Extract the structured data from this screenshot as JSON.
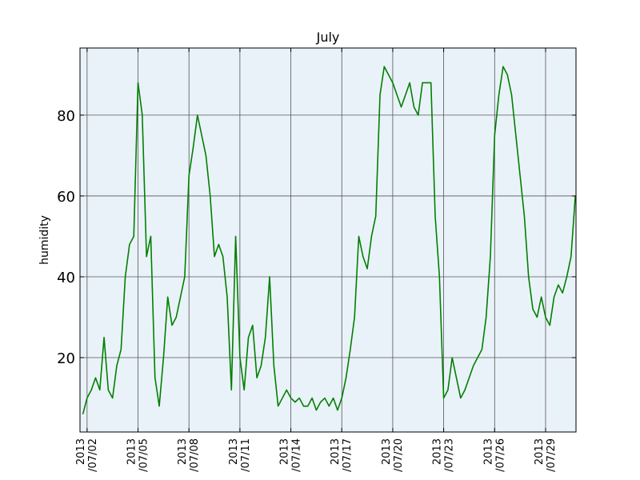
{
  "chart_data": {
    "type": "line",
    "title": "July",
    "y_label": "humidity",
    "color": "#008000",
    "background": "#eaf2f9",
    "grid": true,
    "x": [
      "2013-07-01 18:00",
      "2013-07-02 00:00",
      "2013-07-02 06:00",
      "2013-07-02 12:00",
      "2013-07-02 18:00",
      "2013-07-03 00:00",
      "2013-07-03 06:00",
      "2013-07-03 12:00",
      "2013-07-03 18:00",
      "2013-07-04 00:00",
      "2013-07-04 06:00",
      "2013-07-04 12:00",
      "2013-07-04 18:00",
      "2013-07-05 00:00",
      "2013-07-05 06:00",
      "2013-07-05 12:00",
      "2013-07-05 18:00",
      "2013-07-06 00:00",
      "2013-07-06 06:00",
      "2013-07-06 12:00",
      "2013-07-06 18:00",
      "2013-07-07 00:00",
      "2013-07-07 06:00",
      "2013-07-07 12:00",
      "2013-07-07 18:00",
      "2013-07-08 00:00",
      "2013-07-08 06:00",
      "2013-07-08 12:00",
      "2013-07-08 18:00",
      "2013-07-09 00:00",
      "2013-07-09 06:00",
      "2013-07-09 12:00",
      "2013-07-09 18:00",
      "2013-07-10 00:00",
      "2013-07-10 06:00",
      "2013-07-10 12:00",
      "2013-07-10 18:00",
      "2013-07-11 00:00",
      "2013-07-11 06:00",
      "2013-07-11 12:00",
      "2013-07-11 18:00",
      "2013-07-12 00:00",
      "2013-07-12 06:00",
      "2013-07-12 12:00",
      "2013-07-12 18:00",
      "2013-07-13 00:00",
      "2013-07-13 06:00",
      "2013-07-13 12:00",
      "2013-07-13 18:00",
      "2013-07-14 00:00",
      "2013-07-14 06:00",
      "2013-07-14 12:00",
      "2013-07-14 18:00",
      "2013-07-15 00:00",
      "2013-07-15 06:00",
      "2013-07-15 12:00",
      "2013-07-15 18:00",
      "2013-07-16 00:00",
      "2013-07-16 06:00",
      "2013-07-16 12:00",
      "2013-07-16 18:00",
      "2013-07-17 00:00",
      "2013-07-17 06:00",
      "2013-07-17 12:00",
      "2013-07-17 18:00",
      "2013-07-18 00:00",
      "2013-07-18 06:00",
      "2013-07-18 12:00",
      "2013-07-18 18:00",
      "2013-07-19 00:00",
      "2013-07-19 06:00",
      "2013-07-19 12:00",
      "2013-07-19 18:00",
      "2013-07-20 00:00",
      "2013-07-20 06:00",
      "2013-07-20 12:00",
      "2013-07-20 18:00",
      "2013-07-21 00:00",
      "2013-07-21 06:00",
      "2013-07-21 12:00",
      "2013-07-21 18:00",
      "2013-07-22 00:00",
      "2013-07-22 06:00",
      "2013-07-22 12:00",
      "2013-07-22 18:00",
      "2013-07-23 00:00",
      "2013-07-23 06:00",
      "2013-07-23 12:00",
      "2013-07-23 18:00",
      "2013-07-24 00:00",
      "2013-07-24 06:00",
      "2013-07-24 12:00",
      "2013-07-24 18:00",
      "2013-07-25 00:00",
      "2013-07-25 06:00",
      "2013-07-25 12:00",
      "2013-07-25 18:00",
      "2013-07-26 00:00",
      "2013-07-26 06:00",
      "2013-07-26 12:00",
      "2013-07-26 18:00",
      "2013-07-27 00:00",
      "2013-07-27 06:00",
      "2013-07-27 12:00",
      "2013-07-27 18:00",
      "2013-07-28 00:00",
      "2013-07-28 06:00",
      "2013-07-28 12:00",
      "2013-07-28 18:00",
      "2013-07-29 00:00",
      "2013-07-29 06:00",
      "2013-07-29 12:00",
      "2013-07-29 18:00",
      "2013-07-30 00:00",
      "2013-07-30 06:00",
      "2013-07-30 12:00",
      "2013-07-30 18:00"
    ],
    "values": [
      6,
      10,
      12,
      15,
      12,
      25,
      12,
      10,
      18,
      22,
      40,
      48,
      50,
      88,
      80,
      45,
      50,
      15,
      8,
      20,
      35,
      28,
      30,
      35,
      40,
      65,
      72,
      80,
      75,
      70,
      60,
      45,
      48,
      45,
      35,
      12,
      50,
      20,
      12,
      25,
      28,
      15,
      18,
      25,
      40,
      18,
      8,
      10,
      12,
      10,
      9,
      10,
      8,
      8,
      10,
      7,
      9,
      10,
      8,
      10,
      7,
      10,
      15,
      22,
      30,
      50,
      45,
      42,
      50,
      55,
      85,
      92,
      90,
      88,
      85,
      82,
      85,
      88,
      82,
      80,
      88,
      88,
      88,
      55,
      40,
      10,
      12,
      20,
      15,
      10,
      12,
      15,
      18,
      20,
      22,
      30,
      45,
      75,
      85,
      92,
      90,
      85,
      75,
      65,
      55,
      40,
      32,
      30,
      35,
      30,
      28,
      35,
      38,
      36,
      40,
      45,
      60
    ],
    "xlim": [
      "2013-07-01 14:00",
      "2013-07-30 19:00"
    ],
    "xticks": [
      {
        "value": "2013-07-02",
        "label": "2013\n/07/02"
      },
      {
        "value": "2013-07-05",
        "label": "2013\n/07/05"
      },
      {
        "value": "2013-07-08",
        "label": "2013\n/07/08"
      },
      {
        "value": "2013-07-11",
        "label": "2013\n/07/11"
      },
      {
        "value": "2013-07-14",
        "label": "2013\n/07/14"
      },
      {
        "value": "2013-07-17",
        "label": "2013\n/07/17"
      },
      {
        "value": "2013-07-20",
        "label": "2013\n/07/20"
      },
      {
        "value": "2013-07-23",
        "label": "2013\n/07/23"
      },
      {
        "value": "2013-07-26",
        "label": "2013\n/07/26"
      },
      {
        "value": "2013-07-29",
        "label": "2013\n/07/29"
      }
    ],
    "ylim": [
      1.6,
      96.6
    ],
    "yticks": [
      20,
      40,
      60,
      80
    ]
  }
}
